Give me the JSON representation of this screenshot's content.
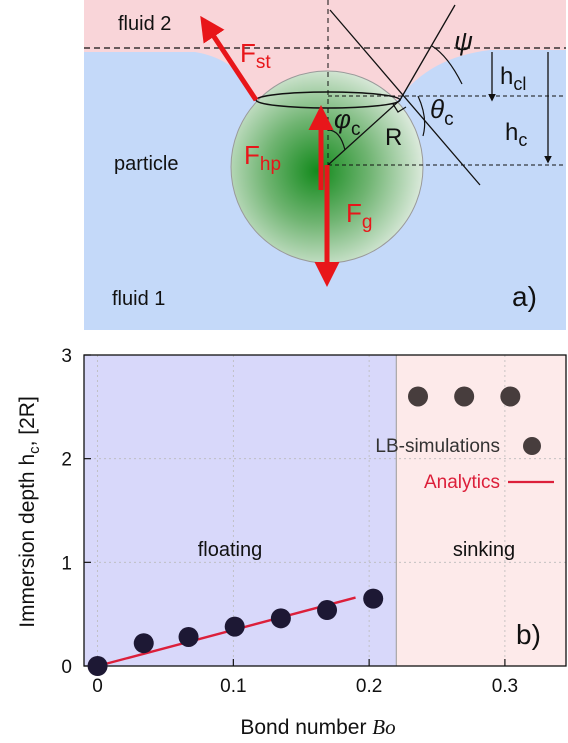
{
  "panel_a": {
    "fluid2_label": "fluid 2",
    "fluid1_label": "fluid 1",
    "particle_label": "particle",
    "panel_tag": "a)",
    "forces": {
      "surface_tension": {
        "base": "F",
        "sub": "st"
      },
      "hydrostatic_pressure": {
        "base": "F",
        "sub": "hp"
      },
      "gravity": {
        "base": "F",
        "sub": "g"
      }
    },
    "symbols": {
      "psi": "ψ",
      "theta_c": {
        "base": "θ",
        "sub": "c"
      },
      "phi_c": {
        "base": "φ",
        "sub": "c"
      },
      "radius": "R",
      "h_cl": {
        "base": "h",
        "sub": "cl"
      },
      "h_c": {
        "base": "h",
        "sub": "c"
      }
    },
    "colors": {
      "fluid1": "#c4d9f9",
      "fluid2": "#f9d5d9",
      "force_arrow": "#e8161a",
      "particle_core": "#138a1c"
    }
  },
  "panel_b": {
    "panel_tag": "b)",
    "region_labels": {
      "floating": "floating",
      "sinking": "sinking"
    },
    "legend": {
      "simulations": "LB-simulations",
      "analytics": "Analytics"
    },
    "colors": {
      "floating_region": "#d8d8fa",
      "sinking_region": "#fdeaea",
      "points": "#1d1834",
      "sinking_points": "#473d3d",
      "analytics_line": "#dc1f3a"
    }
  },
  "chart_data": {
    "type": "scatter",
    "xlabel": {
      "text": "Bond number ",
      "italic": "Bo"
    },
    "ylabel": {
      "text": "Immersion depth h",
      "sub": "c",
      "suffix": ", [2R]"
    },
    "xlim": [
      -0.01,
      0.345
    ],
    "ylim": [
      0,
      3
    ],
    "xticks": [
      0,
      0.1,
      0.2,
      0.3
    ],
    "xtick_labels": [
      "0",
      "0.1",
      "0.2",
      "0.3"
    ],
    "yticks": [
      0,
      1,
      2,
      3
    ],
    "ytick_labels": [
      "0",
      "1",
      "2",
      "3"
    ],
    "grid": true,
    "regime_boundary_x": 0.22,
    "legend_position": "right",
    "series": [
      {
        "name": "LB-simulations",
        "kind": "points",
        "x": [
          0,
          0.034,
          0.067,
          0.101,
          0.135,
          0.169,
          0.203
        ],
        "y": [
          0.0,
          0.22,
          0.28,
          0.38,
          0.46,
          0.54,
          0.65
        ]
      },
      {
        "name": "LB-simulations (sinking)",
        "kind": "points",
        "x": [
          0.236,
          0.27,
          0.304
        ],
        "y": [
          2.6,
          2.6,
          2.6
        ]
      },
      {
        "name": "Analytics",
        "kind": "line",
        "x": [
          0,
          0.19
        ],
        "y": [
          0,
          0.66
        ]
      }
    ]
  }
}
